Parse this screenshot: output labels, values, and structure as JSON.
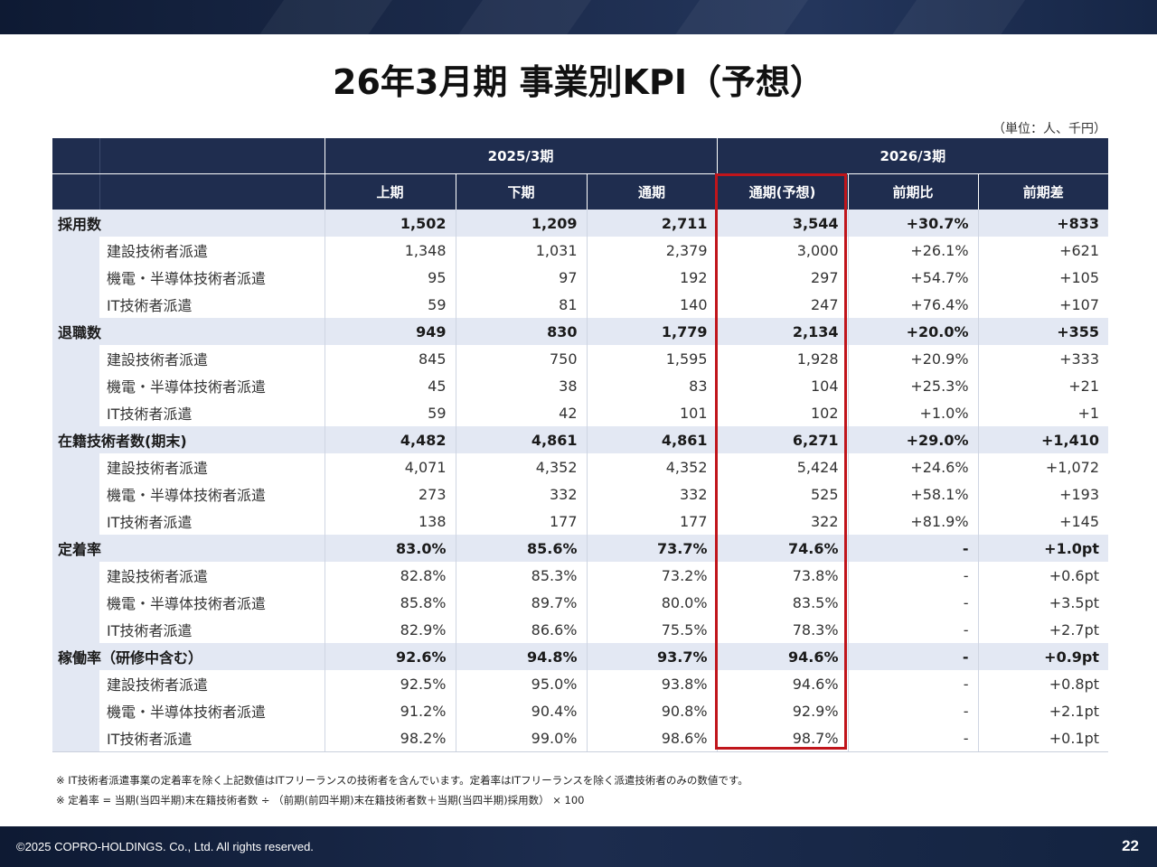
{
  "page": {
    "title": "26年3月期 事業別KPI（予想）",
    "unit_note": "（単位：人、千円）",
    "copyright": "©2025 COPRO-HOLDINGS. Co., Ltd. All rights reserved.",
    "page_number": "22"
  },
  "table": {
    "period_headers": [
      "2025/3期",
      "2026/3期"
    ],
    "column_headers": [
      "上期",
      "下期",
      "通期",
      "通期(予想)",
      "前期比",
      "前期差"
    ],
    "rows": [
      {
        "type": "major",
        "label": "採用数",
        "values": [
          "1,502",
          "1,209",
          "2,711",
          "3,544",
          "+30.7%",
          "+833"
        ]
      },
      {
        "type": "sub",
        "label": "建設技術者派遣",
        "values": [
          "1,348",
          "1,031",
          "2,379",
          "3,000",
          "+26.1%",
          "+621"
        ]
      },
      {
        "type": "sub",
        "label": "機電・半導体技術者派遣",
        "values": [
          "95",
          "97",
          "192",
          "297",
          "+54.7%",
          "+105"
        ]
      },
      {
        "type": "sub",
        "label": "IT技術者派遣",
        "values": [
          "59",
          "81",
          "140",
          "247",
          "+76.4%",
          "+107"
        ]
      },
      {
        "type": "major",
        "label": "退職数",
        "values": [
          "949",
          "830",
          "1,779",
          "2,134",
          "+20.0%",
          "+355"
        ]
      },
      {
        "type": "sub",
        "label": "建設技術者派遣",
        "values": [
          "845",
          "750",
          "1,595",
          "1,928",
          "+20.9%",
          "+333"
        ]
      },
      {
        "type": "sub",
        "label": "機電・半導体技術者派遣",
        "values": [
          "45",
          "38",
          "83",
          "104",
          "+25.3%",
          "+21"
        ]
      },
      {
        "type": "sub",
        "label": "IT技術者派遣",
        "values": [
          "59",
          "42",
          "101",
          "102",
          "+1.0%",
          "+1"
        ]
      },
      {
        "type": "major",
        "label": "在籍技術者数(期末)",
        "values": [
          "4,482",
          "4,861",
          "4,861",
          "6,271",
          "+29.0%",
          "+1,410"
        ]
      },
      {
        "type": "sub",
        "label": "建設技術者派遣",
        "values": [
          "4,071",
          "4,352",
          "4,352",
          "5,424",
          "+24.6%",
          "+1,072"
        ]
      },
      {
        "type": "sub",
        "label": "機電・半導体技術者派遣",
        "values": [
          "273",
          "332",
          "332",
          "525",
          "+58.1%",
          "+193"
        ]
      },
      {
        "type": "sub",
        "label": "IT技術者派遣",
        "values": [
          "138",
          "177",
          "177",
          "322",
          "+81.9%",
          "+145"
        ]
      },
      {
        "type": "major",
        "label": "定着率",
        "values": [
          "83.0%",
          "85.6%",
          "73.7%",
          "74.6%",
          "-",
          "+1.0pt"
        ]
      },
      {
        "type": "sub",
        "label": "建設技術者派遣",
        "values": [
          "82.8%",
          "85.3%",
          "73.2%",
          "73.8%",
          "-",
          "+0.6pt"
        ]
      },
      {
        "type": "sub",
        "label": "機電・半導体技術者派遣",
        "values": [
          "85.8%",
          "89.7%",
          "80.0%",
          "83.5%",
          "-",
          "+3.5pt"
        ]
      },
      {
        "type": "sub",
        "label": "IT技術者派遣",
        "values": [
          "82.9%",
          "86.6%",
          "75.5%",
          "78.3%",
          "-",
          "+2.7pt"
        ]
      },
      {
        "type": "major",
        "label": "稼働率（研修中含む）",
        "values": [
          "92.6%",
          "94.8%",
          "93.7%",
          "94.6%",
          "-",
          "+0.9pt"
        ]
      },
      {
        "type": "sub",
        "label": "建設技術者派遣",
        "values": [
          "92.5%",
          "95.0%",
          "93.8%",
          "94.6%",
          "-",
          "+0.8pt"
        ]
      },
      {
        "type": "sub",
        "label": "機電・半導体技術者派遣",
        "values": [
          "91.2%",
          "90.4%",
          "90.8%",
          "92.9%",
          "-",
          "+2.1pt"
        ]
      },
      {
        "type": "sub",
        "label": "IT技術者派遣",
        "values": [
          "98.2%",
          "99.0%",
          "98.6%",
          "98.7%",
          "-",
          "+0.1pt"
        ]
      }
    ]
  },
  "notes": [
    "※ IT技術者派遣事業の定着率を除く上記数値はITフリーランスの技術者を含んでいます。定着率はITフリーランスを除く派遣技術者のみの数値です。",
    "※ 定着率 = 当期(当四半期)末在籍技術者数 ÷ （前期(前四半期)末在籍技術者数＋当期(当四半期)採用数） × 100"
  ],
  "highlight": {
    "column": "通期(予想)",
    "color": "#c0151b"
  },
  "colors": {
    "header_bg": "#1f2d4f",
    "major_row_bg": "#e3e8f3",
    "highlight": "#c0151b"
  }
}
